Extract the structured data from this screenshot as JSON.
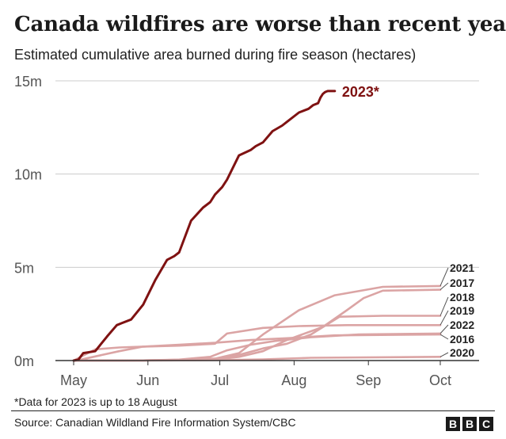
{
  "header": {
    "title": "Canada wildfires are worse than recent years",
    "subtitle": "Estimated cumulative area burned during fire season (hectares)"
  },
  "footer": {
    "footnote": "*Data for 2023 is up to 18 August",
    "source": "Source: Canadian Wildland Fire Information System/CBC",
    "logo_letters": [
      "B",
      "B",
      "C"
    ]
  },
  "colors": {
    "highlight": "#7f1212",
    "other_years": "#dba4a4",
    "grid": "#cccccc",
    "text": "#222222"
  },
  "chart_data": {
    "type": "line",
    "title": "Canada wildfires are worse than recent years",
    "ylabel": "Estimated cumulative area burned (hectares)",
    "xlabel": "",
    "x_unit": "day of year",
    "xlim": [
      120,
      275
    ],
    "ylim": [
      0,
      15000000
    ],
    "x_ticks": [
      {
        "label": "May",
        "x": 121
      },
      {
        "label": "Jun",
        "x": 152
      },
      {
        "label": "Jul",
        "x": 182
      },
      {
        "label": "Aug",
        "x": 213
      },
      {
        "label": "Sep",
        "x": 244
      },
      {
        "label": "Oct",
        "x": 274
      }
    ],
    "y_ticks": [
      {
        "label": "0m",
        "y": 0
      },
      {
        "label": "5m",
        "y": 5000000
      },
      {
        "label": "10m",
        "y": 10000000
      },
      {
        "label": "15m",
        "y": 15000000
      }
    ],
    "series": [
      {
        "name": "2021",
        "label": "2021",
        "highlight": false,
        "x": [
          121,
          150,
          165,
          180,
          190,
          200,
          215,
          230,
          250,
          274
        ],
        "y": [
          0,
          10000,
          30000,
          100000,
          400000,
          1400000,
          2700000,
          3500000,
          3950000,
          4000000
        ]
      },
      {
        "name": "2017",
        "label": "2017",
        "highlight": false,
        "x": [
          121,
          150,
          180,
          190,
          200,
          210,
          225,
          235,
          242,
          250,
          274
        ],
        "y": [
          0,
          10000,
          50000,
          200000,
          500000,
          1100000,
          1800000,
          2700000,
          3350000,
          3750000,
          3800000
        ]
      },
      {
        "name": "2018",
        "label": "2018",
        "highlight": false,
        "x": [
          121,
          150,
          165,
          180,
          190,
          200,
          210,
          220,
          232,
          250,
          274
        ],
        "y": [
          0,
          10000,
          40000,
          100000,
          300000,
          650000,
          900000,
          1400000,
          2350000,
          2400000,
          2400000
        ]
      },
      {
        "name": "2019",
        "label": "2019",
        "highlight": false,
        "x": [
          121,
          130,
          140,
          150,
          165,
          180,
          185,
          200,
          215,
          235,
          274
        ],
        "y": [
          0,
          600000,
          700000,
          750000,
          800000,
          900000,
          1450000,
          1750000,
          1850000,
          1900000,
          1900000
        ]
      },
      {
        "name": "2022",
        "label": "2022",
        "highlight": false,
        "x": [
          121,
          150,
          165,
          178,
          185,
          195,
          205,
          220,
          240,
          274
        ],
        "y": [
          0,
          10000,
          50000,
          200000,
          550000,
          850000,
          1050000,
          1250000,
          1400000,
          1450000
        ]
      },
      {
        "name": "2016",
        "label": "2016",
        "highlight": false,
        "x": [
          121,
          124,
          140,
          150,
          165,
          180,
          195,
          210,
          230,
          274
        ],
        "y": [
          0,
          50000,
          500000,
          750000,
          850000,
          950000,
          1100000,
          1200000,
          1350000,
          1400000
        ]
      },
      {
        "name": "2020",
        "label": "2020",
        "highlight": false,
        "x": [
          121,
          150,
          180,
          200,
          220,
          274
        ],
        "y": [
          0,
          5000,
          20000,
          60000,
          150000,
          200000
        ]
      },
      {
        "name": "2023",
        "label": "2023*",
        "highlight": true,
        "x": [
          121,
          123,
          125,
          130,
          135,
          139,
          141,
          145,
          150,
          155,
          160,
          163,
          165,
          170,
          175,
          178,
          180,
          183,
          185,
          190,
          195,
          197,
          200,
          204,
          208,
          210,
          215,
          219,
          221,
          223,
          224,
          225,
          226,
          227,
          228,
          229,
          230
        ],
        "y": [
          0,
          50000,
          400000,
          500000,
          1300000,
          1900000,
          2000000,
          2200000,
          3000000,
          4300000,
          5400000,
          5600000,
          5800000,
          7500000,
          8200000,
          8500000,
          8900000,
          9300000,
          9700000,
          11000000,
          11300000,
          11500000,
          11700000,
          12300000,
          12600000,
          12800000,
          13300000,
          13500000,
          13700000,
          13800000,
          14100000,
          14300000,
          14400000,
          14450000,
          14450000,
          14450000,
          14450000
        ]
      }
    ]
  }
}
